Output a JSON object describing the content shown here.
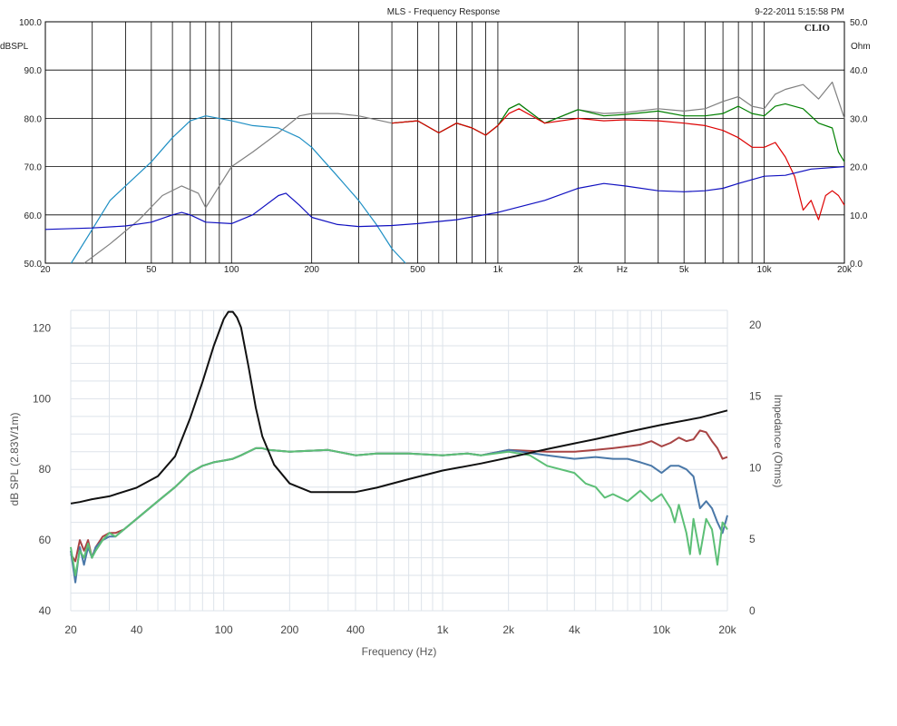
{
  "chart_data": [
    {
      "type": "line",
      "title": "MLS - Frequency Response",
      "timestamp": "9-22-2011 5:15:58 PM",
      "brand": "CLIO",
      "left_axis_unit": "dBSPL",
      "right_axis_unit": "Ohm",
      "x_unit_label": "Hz",
      "x_scale": "log",
      "xlim": [
        20,
        20000
      ],
      "ylim": [
        50,
        100
      ],
      "y2lim": [
        0,
        50
      ],
      "grid": true,
      "x_tick_labels": [
        {
          "value": 20,
          "label": "20"
        },
        {
          "value": 50,
          "label": "50"
        },
        {
          "value": 100,
          "label": "100"
        },
        {
          "value": 200,
          "label": "200"
        },
        {
          "value": 500,
          "label": "500"
        },
        {
          "value": 1000,
          "label": "1k"
        },
        {
          "value": 2000,
          "label": "2k"
        },
        {
          "value": 5000,
          "label": "5k"
        },
        {
          "value": 10000,
          "label": "10k"
        },
        {
          "value": 20000,
          "label": "20k"
        }
      ],
      "y_tick_labels": [
        {
          "value": 100,
          "label": "100.0"
        },
        {
          "value": 90,
          "label": "90.0"
        },
        {
          "value": 80,
          "label": "80.0"
        },
        {
          "value": 70,
          "label": "70.0"
        },
        {
          "value": 60,
          "label": "60.0"
        },
        {
          "value": 50,
          "label": "50.0"
        }
      ],
      "y2_tick_labels": [
        {
          "value": 50,
          "label": "50.0"
        },
        {
          "value": 40,
          "label": "40.0"
        },
        {
          "value": 30,
          "label": "30.0"
        },
        {
          "value": 20,
          "label": "20.0"
        },
        {
          "value": 10,
          "label": "10.0"
        },
        {
          "value": 0,
          "label": "0.0"
        }
      ],
      "series": [
        {
          "color": "#808080",
          "axis": "left",
          "x": [
            28,
            35,
            45,
            55,
            65,
            75,
            80,
            90,
            100,
            120,
            150,
            180,
            200,
            250,
            300,
            400,
            500,
            600,
            700,
            800,
            900,
            1000,
            1100,
            1200,
            1500,
            2000,
            2500,
            3000,
            4000,
            5000,
            6000,
            7000,
            8000,
            9000,
            10000,
            11000,
            12000,
            14000,
            16000,
            18000,
            20000
          ],
          "y": [
            50,
            54,
            59,
            64,
            66,
            64.5,
            61.5,
            66,
            70,
            73,
            77,
            80.5,
            81,
            81,
            80.5,
            79,
            79.5,
            77,
            79,
            78,
            76.5,
            78.5,
            82,
            83,
            79,
            81.8,
            81,
            81.2,
            82,
            81.5,
            82,
            83.5,
            84.5,
            82.5,
            82,
            85,
            86,
            87,
            84,
            87.5,
            80
          ]
        },
        {
          "color": "#008000",
          "axis": "left",
          "x": [
            400,
            500,
            600,
            700,
            800,
            900,
            1000,
            1100,
            1200,
            1500,
            2000,
            2500,
            3000,
            4000,
            5000,
            6000,
            7000,
            8000,
            9000,
            10000,
            11000,
            12000,
            14000,
            16000,
            18000,
            19000,
            20000
          ],
          "y": [
            79,
            79.5,
            77,
            79,
            78,
            76.5,
            78.5,
            82,
            83,
            79,
            81.8,
            80.5,
            80.8,
            81.5,
            80.5,
            80.5,
            81,
            82.5,
            81,
            80.5,
            82.5,
            83,
            82,
            79,
            78,
            73,
            71
          ]
        },
        {
          "color": "#dd0000",
          "axis": "left",
          "x": [
            400,
            500,
            600,
            700,
            800,
            900,
            1000,
            1100,
            1200,
            1500,
            2000,
            2500,
            3000,
            4000,
            5000,
            6000,
            7000,
            8000,
            9000,
            10000,
            11000,
            12000,
            13000,
            14000,
            15000,
            16000,
            17000,
            18000,
            19000,
            20000
          ],
          "y": [
            79,
            79.5,
            77,
            79,
            78,
            76.5,
            78.5,
            81,
            82,
            79,
            80,
            79.5,
            79.7,
            79.5,
            79,
            78.5,
            77.5,
            76,
            74,
            74,
            75,
            72,
            68,
            61,
            63,
            59,
            64,
            65,
            64,
            62
          ]
        },
        {
          "color": "#1e8fc4",
          "axis": "left",
          "x": [
            25,
            30,
            35,
            40,
            50,
            60,
            70,
            80,
            100,
            120,
            150,
            180,
            200,
            250,
            300,
            350,
            400,
            450
          ],
          "y": [
            50,
            57,
            63,
            66,
            71,
            76,
            79.5,
            80.5,
            79.5,
            78.5,
            78,
            76,
            74,
            68,
            63,
            58,
            53,
            50
          ]
        },
        {
          "color": "#1010c0",
          "axis": "right",
          "x": [
            20,
            30,
            40,
            50,
            60,
            65,
            70,
            80,
            100,
            120,
            150,
            160,
            180,
            200,
            250,
            300,
            400,
            500,
            700,
            1000,
            1500,
            2000,
            2500,
            3000,
            4000,
            5000,
            6000,
            7000,
            8000,
            10000,
            12000,
            15000,
            20000
          ],
          "y": [
            7,
            7.3,
            7.7,
            8.5,
            10,
            10.5,
            10,
            8.5,
            8.2,
            10,
            14,
            14.5,
            12,
            9.5,
            8,
            7.6,
            7.8,
            8.2,
            9,
            10.5,
            13,
            15.5,
            16.5,
            16,
            15,
            14.8,
            15,
            15.5,
            16.5,
            18,
            18.2,
            19.5,
            20
          ]
        }
      ]
    },
    {
      "type": "line",
      "title": "",
      "xlabel": "Frequency (Hz)",
      "ylabel": "dB SPL (2.83V/1m)",
      "y2label": "Impedance (Ohms)",
      "x_scale": "log",
      "xlim": [
        20,
        20000
      ],
      "ylim": [
        40,
        125
      ],
      "y2lim": [
        0,
        21
      ],
      "grid": true,
      "x_tick_labels": [
        {
          "value": 20,
          "label": "20"
        },
        {
          "value": 40,
          "label": "40"
        },
        {
          "value": 100,
          "label": "100"
        },
        {
          "value": 200,
          "label": "200"
        },
        {
          "value": 400,
          "label": "400"
        },
        {
          "value": 1000,
          "label": "1k"
        },
        {
          "value": 2000,
          "label": "2k"
        },
        {
          "value": 4000,
          "label": "4k"
        },
        {
          "value": 10000,
          "label": "10k"
        },
        {
          "value": 20000,
          "label": "20k"
        }
      ],
      "y_tick_labels": [
        {
          "value": 120,
          "label": "120"
        },
        {
          "value": 100,
          "label": "100"
        },
        {
          "value": 80,
          "label": "80"
        },
        {
          "value": 60,
          "label": "60"
        },
        {
          "value": 40,
          "label": "40"
        }
      ],
      "y2_tick_labels": [
        {
          "value": 20,
          "label": "20"
        },
        {
          "value": 15,
          "label": "15"
        },
        {
          "value": 10,
          "label": "10"
        },
        {
          "value": 5,
          "label": "5"
        },
        {
          "value": 0,
          "label": "0"
        }
      ],
      "series": [
        {
          "color": "#a84444",
          "axis": "left",
          "x": [
            20,
            21,
            22,
            23,
            24,
            25,
            26,
            28,
            30,
            32,
            35,
            40,
            50,
            60,
            70,
            80,
            90,
            100,
            110,
            120,
            140,
            150,
            160,
            200,
            300,
            400,
            500,
            700,
            1000,
            1300,
            1500,
            2000,
            3000,
            4000,
            5000,
            6000,
            7000,
            8000,
            9000,
            10000,
            11000,
            12000,
            13000,
            14000,
            15000,
            16000,
            17000,
            18000,
            19000,
            20000
          ],
          "y": [
            56,
            54,
            60,
            57,
            60,
            55,
            58,
            61,
            62,
            62,
            63,
            66,
            71,
            75,
            79,
            81,
            82,
            82.5,
            83,
            84,
            86,
            86,
            85.5,
            85,
            85.5,
            84,
            84.5,
            84.5,
            84,
            84.5,
            84,
            85.5,
            85,
            85,
            85.5,
            86,
            86.5,
            87,
            88,
            86.5,
            87.5,
            89,
            88,
            88.5,
            91,
            90.5,
            88,
            86,
            83,
            83.5
          ]
        },
        {
          "color": "#4a78a8",
          "axis": "left",
          "x": [
            20,
            21,
            22,
            23,
            24,
            25,
            26,
            28,
            30,
            32,
            35,
            40,
            50,
            60,
            70,
            80,
            90,
            100,
            110,
            120,
            140,
            150,
            160,
            200,
            300,
            400,
            500,
            700,
            1000,
            1300,
            1500,
            2000,
            3000,
            4000,
            5000,
            6000,
            7000,
            8000,
            9000,
            10000,
            11000,
            12000,
            13000,
            14000,
            15000,
            16000,
            17000,
            18000,
            19000,
            20000
          ],
          "y": [
            57,
            48,
            58,
            53,
            58,
            55,
            58,
            60,
            61,
            61,
            63,
            66,
            71,
            75,
            79,
            81,
            82,
            82.5,
            83,
            84,
            86,
            86,
            85.5,
            85,
            85.5,
            84,
            84.5,
            84.5,
            84,
            84.5,
            84,
            85.5,
            84,
            83,
            83.5,
            83,
            83,
            82,
            81,
            79,
            81,
            81,
            80,
            78,
            69,
            71,
            69,
            65,
            62,
            67
          ]
        },
        {
          "color": "#5cbf76",
          "axis": "left",
          "x": [
            20,
            21,
            22,
            23,
            24,
            25,
            26,
            28,
            30,
            32,
            35,
            40,
            50,
            60,
            70,
            80,
            90,
            100,
            110,
            120,
            140,
            150,
            160,
            200,
            300,
            400,
            500,
            700,
            1000,
            1300,
            1500,
            2000,
            2500,
            3000,
            4000,
            4500,
            5000,
            5500,
            6000,
            7000,
            8000,
            9000,
            10000,
            11000,
            11500,
            12000,
            13000,
            13500,
            14000,
            15000,
            16000,
            17000,
            18000,
            19000,
            20000
          ],
          "y": [
            58,
            50,
            57,
            55,
            59,
            55,
            57,
            60,
            62,
            61,
            63,
            66,
            71,
            75,
            79,
            81,
            82,
            82.5,
            83,
            84,
            86,
            86,
            85.5,
            85,
            85.5,
            84,
            84.5,
            84.5,
            84,
            84.5,
            84,
            85,
            84,
            81,
            79,
            76,
            75,
            72,
            73,
            71,
            74,
            71,
            73,
            69,
            65,
            70,
            62,
            56,
            66,
            56,
            66,
            63,
            53,
            65,
            63
          ]
        },
        {
          "color": "#111111",
          "axis": "right",
          "x": [
            20,
            22,
            25,
            30,
            40,
            50,
            60,
            70,
            80,
            90,
            100,
            105,
            110,
            115,
            120,
            130,
            140,
            150,
            170,
            200,
            250,
            300,
            400,
            500,
            700,
            1000,
            1500,
            2000,
            3000,
            4000,
            5000,
            7000,
            10000,
            15000,
            20000
          ],
          "y": [
            7.5,
            7.6,
            7.8,
            8,
            8.6,
            9.4,
            10.8,
            13.4,
            16,
            18.5,
            20.4,
            20.9,
            20.9,
            20.5,
            19.8,
            17,
            14.2,
            12.2,
            10.2,
            8.9,
            8.3,
            8.3,
            8.3,
            8.6,
            9.2,
            9.8,
            10.3,
            10.7,
            11.3,
            11.7,
            12,
            12.5,
            13,
            13.5,
            14
          ]
        }
      ]
    }
  ]
}
